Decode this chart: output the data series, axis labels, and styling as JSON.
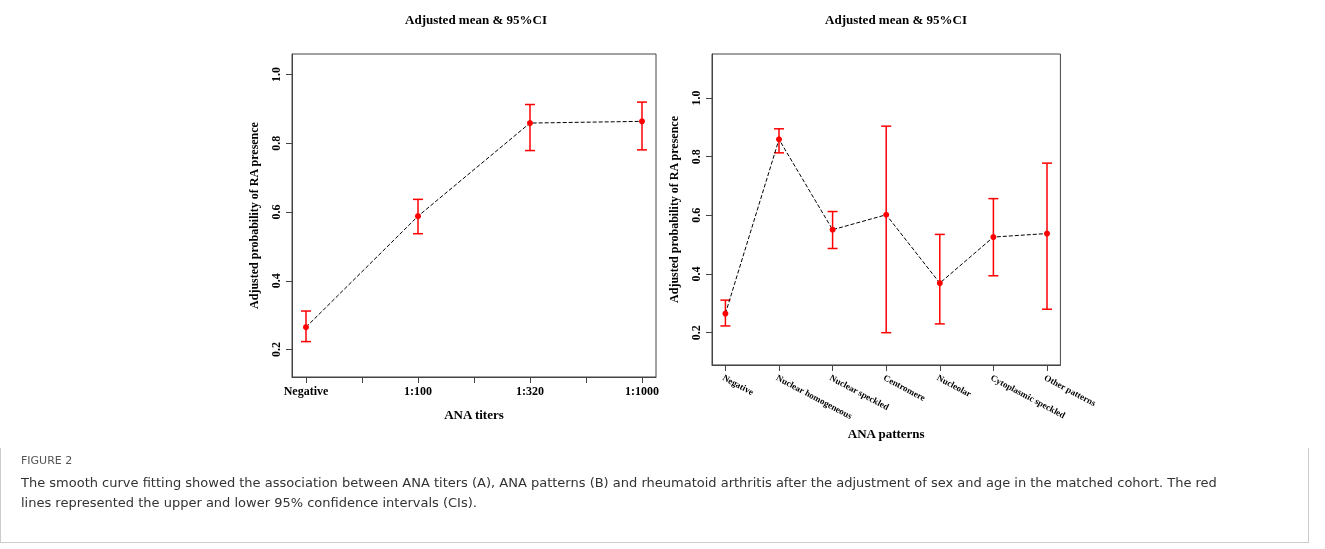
{
  "chart_data": [
    {
      "type": "line",
      "title": "Adjusted mean & 95%CI",
      "xlabel": "ANA titers",
      "ylabel": "Adjusted probability of RA presence",
      "categories": [
        "Negative",
        null,
        "1:100",
        null,
        "1:320",
        null,
        "1:1000"
      ],
      "values": [
        0.265,
        null,
        0.588,
        null,
        0.859,
        null,
        0.864
      ],
      "errors": [
        [
          0.223,
          0.312
        ],
        null,
        [
          0.537,
          0.637
        ],
        null,
        [
          0.779,
          0.913
        ],
        null,
        [
          0.781,
          0.92
        ]
      ],
      "color": "#ff0000",
      "marker": "circle",
      "line_style": "dashed",
      "ylim": [
        0.12,
        1.06
      ],
      "yticks": [
        0.2,
        0.4,
        0.6,
        0.8,
        {
          "value": 1,
          "label": "1.0"
        }
      ],
      "annotations": [
        "FIGURE 2",
        "The smooth curve fitting showed the association between ANA titers (A), ANA patterns (B) and rheumatoid arthritis after the adjustment of sex and age in the matched cohort. The red lines represented the upper and lower 95% confidence intervals (CIs)."
      ]
    },
    {
      "type": "line",
      "title": "Adjusted mean & 95%CI",
      "xlabel": "ANA patterns",
      "ylabel": "Adjusted probability of RA presence",
      "categories": [
        "Negative",
        "Nuclear homogeneous",
        "Nuclear speckled",
        "Centromere",
        "Nucleolar",
        "Cytoplasmic speckled",
        "Other patterns"
      ],
      "values": [
        0.265,
        0.859,
        0.551,
        0.602,
        0.369,
        0.526,
        0.538
      ],
      "errors": [
        [
          0.223,
          0.311
        ],
        [
          0.813,
          0.895
        ],
        [
          0.487,
          0.613
        ],
        [
          0.2,
          0.904
        ],
        [
          0.23,
          0.535
        ],
        [
          0.394,
          0.657
        ],
        [
          0.28,
          0.778
        ]
      ],
      "color": "#ff0000",
      "marker": "circle",
      "line_style": "dashed",
      "ylim": [
        0.09,
        1.15
      ],
      "yticks": [
        0.2,
        0.4,
        0.6,
        0.8,
        {
          "value": 1,
          "label": "1.0"
        }
      ]
    }
  ]
}
